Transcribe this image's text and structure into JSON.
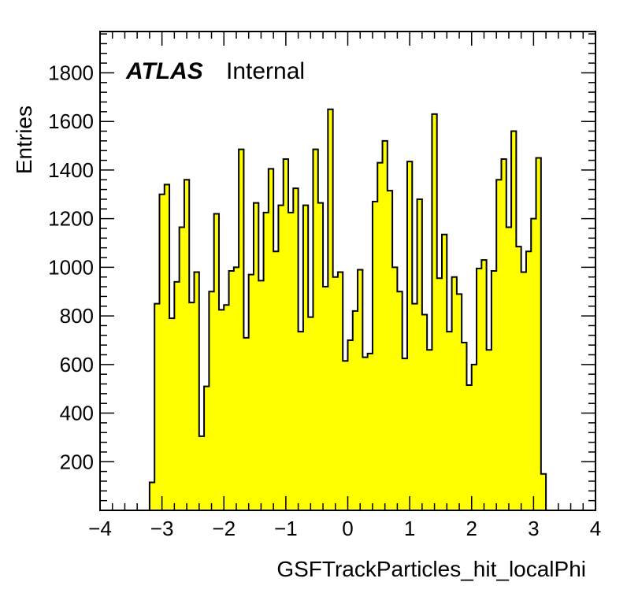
{
  "chart_data": {
    "type": "bar",
    "subtype": "histogram",
    "xlabel": "GSFTrackParticles_hit_localPhi",
    "ylabel": "Entries",
    "label_bold": "ATLAS",
    "label_text": "Internal",
    "xlim": [
      -4,
      4
    ],
    "ylim": [
      0,
      1970
    ],
    "x_ticks": [
      -4,
      -3,
      -2,
      -1,
      0,
      1,
      2,
      3,
      4
    ],
    "x_tick_labels": [
      "−4",
      "−3",
      "−2",
      "−1",
      "0",
      "1",
      "2",
      "3",
      "4"
    ],
    "y_ticks": [
      200,
      400,
      600,
      800,
      1000,
      1200,
      1400,
      1600,
      1800
    ],
    "y_tick_labels": [
      "200",
      "400",
      "600",
      "800",
      "1000",
      "1200",
      "1400",
      "1600",
      "1800"
    ],
    "bin_low": -3.2,
    "bin_width": 0.08,
    "values": [
      115,
      850,
      1300,
      1340,
      790,
      940,
      1165,
      1360,
      855,
      980,
      305,
      510,
      900,
      1220,
      825,
      845,
      985,
      1000,
      1485,
      710,
      970,
      1265,
      945,
      1225,
      1405,
      1065,
      1255,
      1445,
      1225,
      1325,
      735,
      1255,
      795,
      1485,
      1265,
      920,
      1650,
      960,
      980,
      615,
      700,
      820,
      990,
      630,
      645,
      1270,
      1430,
      1520,
      1315,
      1000,
      900,
      625,
      1435,
      850,
      1280,
      805,
      660,
      1630,
      955,
      1135,
      735,
      960,
      890,
      690,
      515,
      600,
      995,
      1030,
      660,
      985,
      1360,
      1445,
      1165,
      1560,
      1085,
      980,
      1065,
      1200,
      1450,
      150
    ],
    "fill_color": "#ffff00",
    "line_color": "#000000",
    "grid": false
  }
}
